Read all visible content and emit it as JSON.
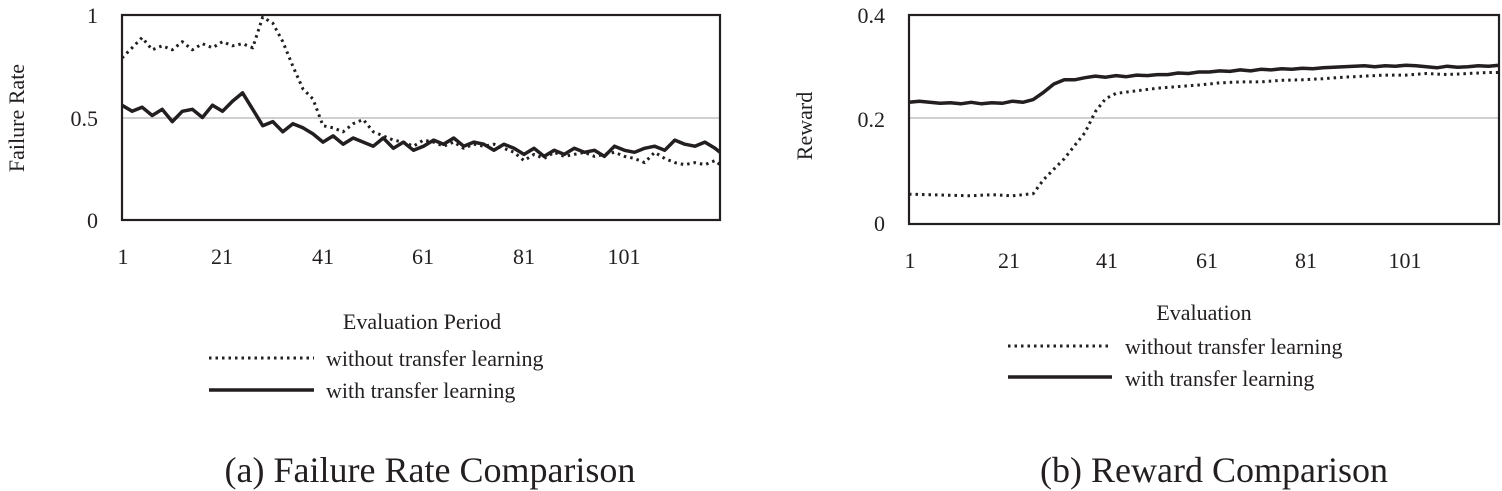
{
  "chart_data": [
    {
      "id": "a",
      "type": "line",
      "caption": "(a) Failure Rate Comparison",
      "title": "",
      "xlabel": "Evaluation Period",
      "ylabel": "Failure Rate",
      "ylim": [
        0,
        1
      ],
      "yticks": [
        "0",
        "0.5",
        "1"
      ],
      "ytick_values": [
        0,
        0.5,
        1
      ],
      "xlim": [
        1,
        120
      ],
      "xticks": [
        "1",
        "21",
        "41",
        "61",
        "81",
        "101"
      ],
      "xtick_values": [
        1,
        21,
        41,
        61,
        81,
        101
      ],
      "gridlines": [
        0.5
      ],
      "legend": [
        "without transfer learning",
        "with transfer learning"
      ],
      "series": [
        {
          "name": "without transfer learning",
          "style": "dotted",
          "x": [
            1,
            3,
            5,
            7,
            9,
            11,
            13,
            15,
            17,
            19,
            21,
            23,
            25,
            27,
            29,
            31,
            33,
            35,
            37,
            39,
            41,
            43,
            45,
            47,
            49,
            51,
            53,
            55,
            57,
            59,
            61,
            63,
            65,
            67,
            69,
            71,
            73,
            75,
            77,
            79,
            81,
            83,
            85,
            87,
            89,
            91,
            93,
            95,
            97,
            99,
            101,
            103,
            105,
            107,
            109,
            111,
            113,
            115,
            117,
            119,
            120
          ],
          "values": [
            0.79,
            0.84,
            0.89,
            0.83,
            0.85,
            0.83,
            0.87,
            0.83,
            0.86,
            0.84,
            0.87,
            0.85,
            0.86,
            0.84,
            0.99,
            0.96,
            0.87,
            0.75,
            0.64,
            0.59,
            0.46,
            0.45,
            0.43,
            0.47,
            0.49,
            0.43,
            0.41,
            0.39,
            0.38,
            0.36,
            0.39,
            0.38,
            0.36,
            0.38,
            0.35,
            0.37,
            0.36,
            0.37,
            0.35,
            0.33,
            0.29,
            0.32,
            0.3,
            0.33,
            0.31,
            0.32,
            0.33,
            0.31,
            0.32,
            0.33,
            0.31,
            0.3,
            0.28,
            0.33,
            0.3,
            0.28,
            0.27,
            0.28,
            0.27,
            0.29,
            0.27
          ]
        },
        {
          "name": "with transfer learning",
          "style": "solid",
          "x": [
            1,
            3,
            5,
            7,
            9,
            11,
            13,
            15,
            17,
            19,
            21,
            23,
            25,
            27,
            29,
            31,
            33,
            35,
            37,
            39,
            41,
            43,
            45,
            47,
            49,
            51,
            53,
            55,
            57,
            59,
            61,
            63,
            65,
            67,
            69,
            71,
            73,
            75,
            77,
            79,
            81,
            83,
            85,
            87,
            89,
            91,
            93,
            95,
            97,
            99,
            101,
            103,
            105,
            107,
            109,
            111,
            113,
            115,
            117,
            119,
            120
          ],
          "values": [
            0.56,
            0.53,
            0.55,
            0.51,
            0.54,
            0.48,
            0.53,
            0.54,
            0.5,
            0.56,
            0.53,
            0.58,
            0.62,
            0.54,
            0.46,
            0.48,
            0.43,
            0.47,
            0.45,
            0.42,
            0.38,
            0.41,
            0.37,
            0.4,
            0.38,
            0.36,
            0.4,
            0.35,
            0.38,
            0.34,
            0.36,
            0.39,
            0.37,
            0.4,
            0.36,
            0.38,
            0.37,
            0.34,
            0.37,
            0.35,
            0.32,
            0.35,
            0.31,
            0.34,
            0.32,
            0.35,
            0.33,
            0.34,
            0.31,
            0.36,
            0.34,
            0.33,
            0.35,
            0.36,
            0.34,
            0.39,
            0.37,
            0.36,
            0.38,
            0.35,
            0.33
          ]
        }
      ]
    },
    {
      "id": "b",
      "type": "line",
      "caption": "(b) Reward Comparison",
      "title": "",
      "xlabel": "Evaluation",
      "ylabel": "Reward",
      "ylim": [
        0,
        0.4
      ],
      "yticks": [
        "0",
        "0.2",
        "0.4"
      ],
      "ytick_values": [
        0,
        0.2,
        0.4
      ],
      "xlim": [
        1,
        115
      ],
      "xticks": [
        "1",
        "21",
        "41",
        "61",
        "81",
        "101"
      ],
      "xtick_values": [
        1,
        21,
        41,
        61,
        81,
        101
      ],
      "gridlines": [
        0.2
      ],
      "legend": [
        "without transfer learning",
        "with transfer learning"
      ],
      "series": [
        {
          "name": "without transfer learning",
          "style": "dotted",
          "x": [
            1,
            5,
            9,
            13,
            17,
            21,
            23,
            25,
            27,
            29,
            31,
            33,
            35,
            37,
            39,
            41,
            45,
            49,
            53,
            57,
            61,
            65,
            69,
            73,
            77,
            81,
            85,
            89,
            93,
            97,
            101,
            105,
            109,
            113,
            115
          ],
          "values": [
            0.057,
            0.056,
            0.055,
            0.054,
            0.056,
            0.054,
            0.056,
            0.058,
            0.085,
            0.105,
            0.125,
            0.15,
            0.175,
            0.215,
            0.24,
            0.25,
            0.255,
            0.26,
            0.263,
            0.266,
            0.27,
            0.272,
            0.272,
            0.275,
            0.276,
            0.278,
            0.281,
            0.283,
            0.285,
            0.285,
            0.288,
            0.286,
            0.288,
            0.29,
            0.29
          ]
        },
        {
          "name": "with transfer learning",
          "style": "solid",
          "x": [
            1,
            3,
            5,
            7,
            9,
            11,
            13,
            15,
            17,
            19,
            21,
            23,
            25,
            27,
            29,
            31,
            33,
            35,
            37,
            39,
            41,
            43,
            45,
            47,
            49,
            51,
            53,
            55,
            57,
            59,
            61,
            63,
            65,
            67,
            69,
            71,
            73,
            75,
            77,
            79,
            81,
            83,
            85,
            87,
            89,
            91,
            93,
            95,
            97,
            99,
            101,
            103,
            105,
            107,
            109,
            111,
            113,
            115
          ],
          "values": [
            0.233,
            0.235,
            0.233,
            0.231,
            0.232,
            0.23,
            0.233,
            0.23,
            0.232,
            0.231,
            0.235,
            0.233,
            0.238,
            0.252,
            0.268,
            0.276,
            0.276,
            0.28,
            0.283,
            0.281,
            0.284,
            0.282,
            0.285,
            0.284,
            0.286,
            0.286,
            0.289,
            0.288,
            0.291,
            0.291,
            0.293,
            0.292,
            0.295,
            0.293,
            0.296,
            0.295,
            0.297,
            0.296,
            0.298,
            0.297,
            0.299,
            0.3,
            0.301,
            0.302,
            0.303,
            0.301,
            0.303,
            0.302,
            0.304,
            0.303,
            0.301,
            0.299,
            0.302,
            0.3,
            0.301,
            0.303,
            0.302,
            0.304
          ]
        }
      ]
    }
  ]
}
